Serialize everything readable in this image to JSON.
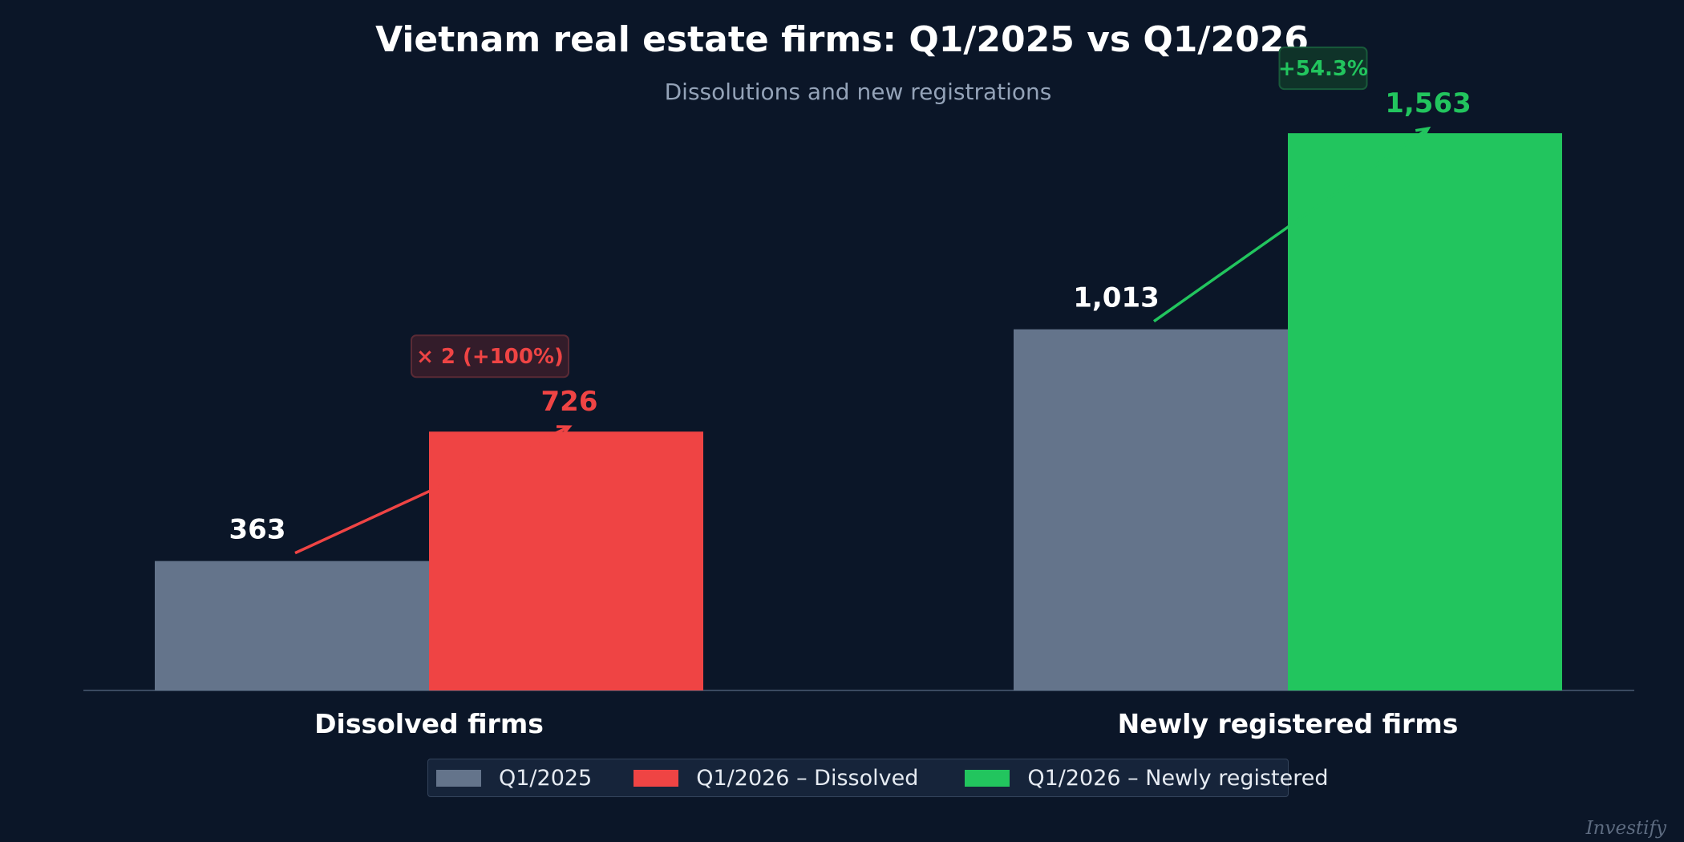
{
  "chart_data": {
    "type": "bar",
    "title": "Vietnam real estate firms: Q1/2025 vs Q1/2026",
    "subtitle": "Dissolutions and new registrations",
    "categories": [
      "Dissolved firms",
      "Newly registered firms"
    ],
    "groups": [
      {
        "category": "Dissolved firms",
        "bars": [
          {
            "series": "Q1/2025",
            "value": 363,
            "label": "363",
            "color": "#64748b"
          },
          {
            "series": "Q1/2026",
            "value": 726,
            "label": "726",
            "color": "#ef4444"
          }
        ],
        "change_label": "× 2  (+100%)",
        "change_color": "#ef4444"
      },
      {
        "category": "Newly registered firms",
        "bars": [
          {
            "series": "Q1/2025",
            "value": 1013,
            "label": "1,013",
            "color": "#64748b"
          },
          {
            "series": "Q1/2026",
            "value": 1563,
            "label": "1,563",
            "color": "#22c55e"
          }
        ],
        "change_label": "+54.3%",
        "change_color": "#22c55e"
      }
    ],
    "ylim": [
      0,
      1750
    ],
    "grid": false,
    "legend_position": "bottom-center"
  },
  "legend": [
    {
      "label": "Q1/2025",
      "color": "#64748b"
    },
    {
      "label": "Q1/2026 – Dissolved",
      "color": "#ef4444"
    },
    {
      "label": "Q1/2026 – Newly registered",
      "color": "#22c55e"
    }
  ],
  "watermark": "Investify"
}
